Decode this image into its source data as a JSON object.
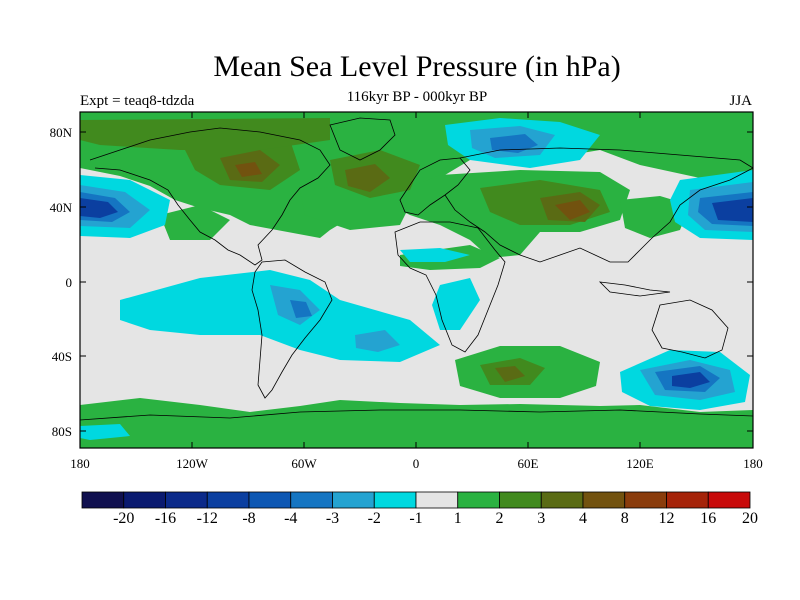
{
  "title": "Mean Sea Level Pressure (in hPa)",
  "subtitle": "116kyr BP - 000kyr BP",
  "experiment_label": "Expt = teaq8-tdzda",
  "season": "JJA",
  "map": {
    "lat_ticks": [
      "80N",
      "40N",
      "0",
      "40S",
      "80S"
    ],
    "lon_ticks": [
      "180",
      "120W",
      "60W",
      "0",
      "60E",
      "120E",
      "180"
    ]
  },
  "colorbar": {
    "labels": [
      "-20",
      "-16",
      "-12",
      "-8",
      "-4",
      "-3",
      "-2",
      "-1",
      "1",
      "2",
      "3",
      "4",
      "8",
      "12",
      "16",
      "20"
    ],
    "colors": [
      "#10104f",
      "#0a1a70",
      "#0b2a8a",
      "#0b3fa0",
      "#0d57b3",
      "#1575c2",
      "#24a3d1",
      "#00d8e0",
      "#e5e5e5",
      "#2ab241",
      "#418a1e",
      "#5a6b14",
      "#72520f",
      "#8a3c0c",
      "#a52309",
      "#c80a0a"
    ]
  },
  "colors": {
    "land_line": "#000000",
    "neutral": "#e5e5e5"
  }
}
